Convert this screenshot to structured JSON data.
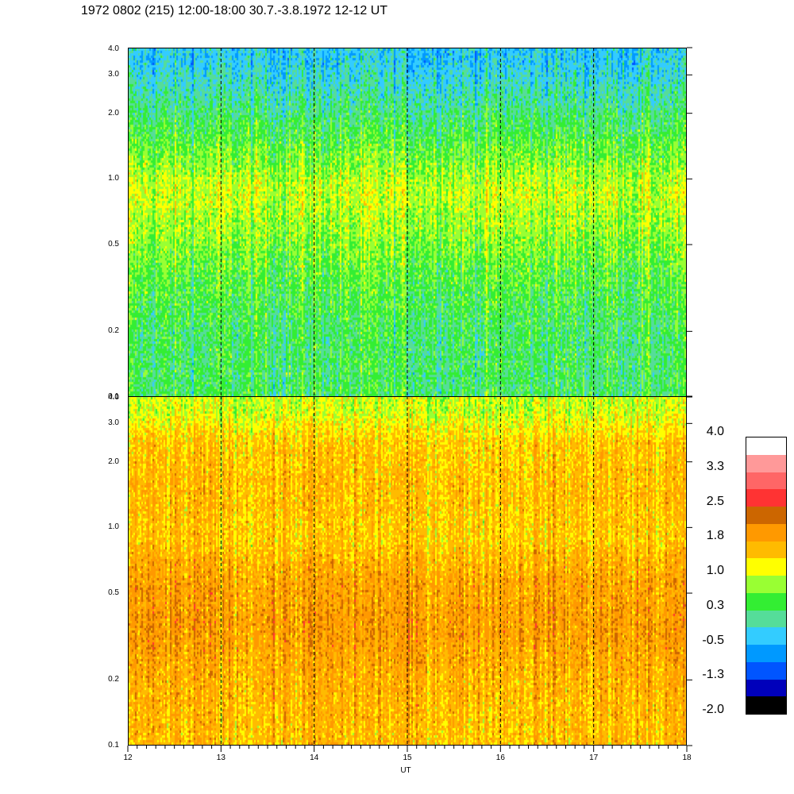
{
  "chart_data": [
    {
      "type": "heatmap",
      "panel": "top",
      "title": "1972 0802 (215) 12:00-18:00 30.7.-3.8.1972  12-12 UT",
      "xlabel": "UT",
      "x_range": [
        12,
        18
      ],
      "x_ticks": [
        "12",
        "13",
        "14",
        "15",
        "16",
        "17",
        "18"
      ],
      "y_scale": "log",
      "y_range": [
        0.1,
        4.0
      ],
      "y_ticks": [
        "0.1",
        "0.2",
        "0.5",
        "1.0",
        "2.0",
        "3.0",
        "4.0"
      ],
      "dashed_vlines": [
        13,
        14,
        15,
        16,
        17
      ],
      "band_means": [
        {
          "y": 0.12,
          "value": 0.3
        },
        {
          "y": 0.2,
          "value": 0.3
        },
        {
          "y": 0.35,
          "value": 0.5
        },
        {
          "y": 0.6,
          "value": 0.8
        },
        {
          "y": 0.9,
          "value": 1.0
        },
        {
          "y": 1.5,
          "value": 0.5
        },
        {
          "y": 2.5,
          "value": 0.0
        },
        {
          "y": 3.5,
          "value": -0.3
        }
      ]
    },
    {
      "type": "heatmap",
      "panel": "bottom",
      "xlabel": "UT",
      "x_range": [
        12,
        18
      ],
      "x_ticks": [
        "12",
        "13",
        "14",
        "15",
        "16",
        "17",
        "18"
      ],
      "y_scale": "log",
      "y_range": [
        0.1,
        4.0
      ],
      "y_ticks": [
        "0.1",
        "0.2",
        "0.5",
        "1.0",
        "2.0",
        "3.0",
        "4.0"
      ],
      "dashed_vlines": [
        13,
        14,
        15,
        16,
        17
      ],
      "band_means": [
        {
          "y": 0.12,
          "value": 1.6
        },
        {
          "y": 0.2,
          "value": 1.7
        },
        {
          "y": 0.35,
          "value": 1.9
        },
        {
          "y": 0.6,
          "value": 1.8
        },
        {
          "y": 0.9,
          "value": 1.5
        },
        {
          "y": 1.5,
          "value": 1.6
        },
        {
          "y": 2.5,
          "value": 1.5
        },
        {
          "y": 3.5,
          "value": 1.0
        }
      ]
    }
  ],
  "colorbar": {
    "labels": [
      "4.0",
      "3.3",
      "2.5",
      "1.8",
      "1.0",
      "0.3",
      "-0.5",
      "-1.3",
      "-2.0"
    ],
    "colors": [
      "#ffffff",
      "#ff9999",
      "#ff6666",
      "#ff3333",
      "#cc6600",
      "#ff9900",
      "#ffbb00",
      "#ffff00",
      "#99ff33",
      "#33ee33",
      "#55dd99",
      "#33ccff",
      "#0099ff",
      "#0055ff",
      "#0000bb",
      "#000000"
    ]
  }
}
